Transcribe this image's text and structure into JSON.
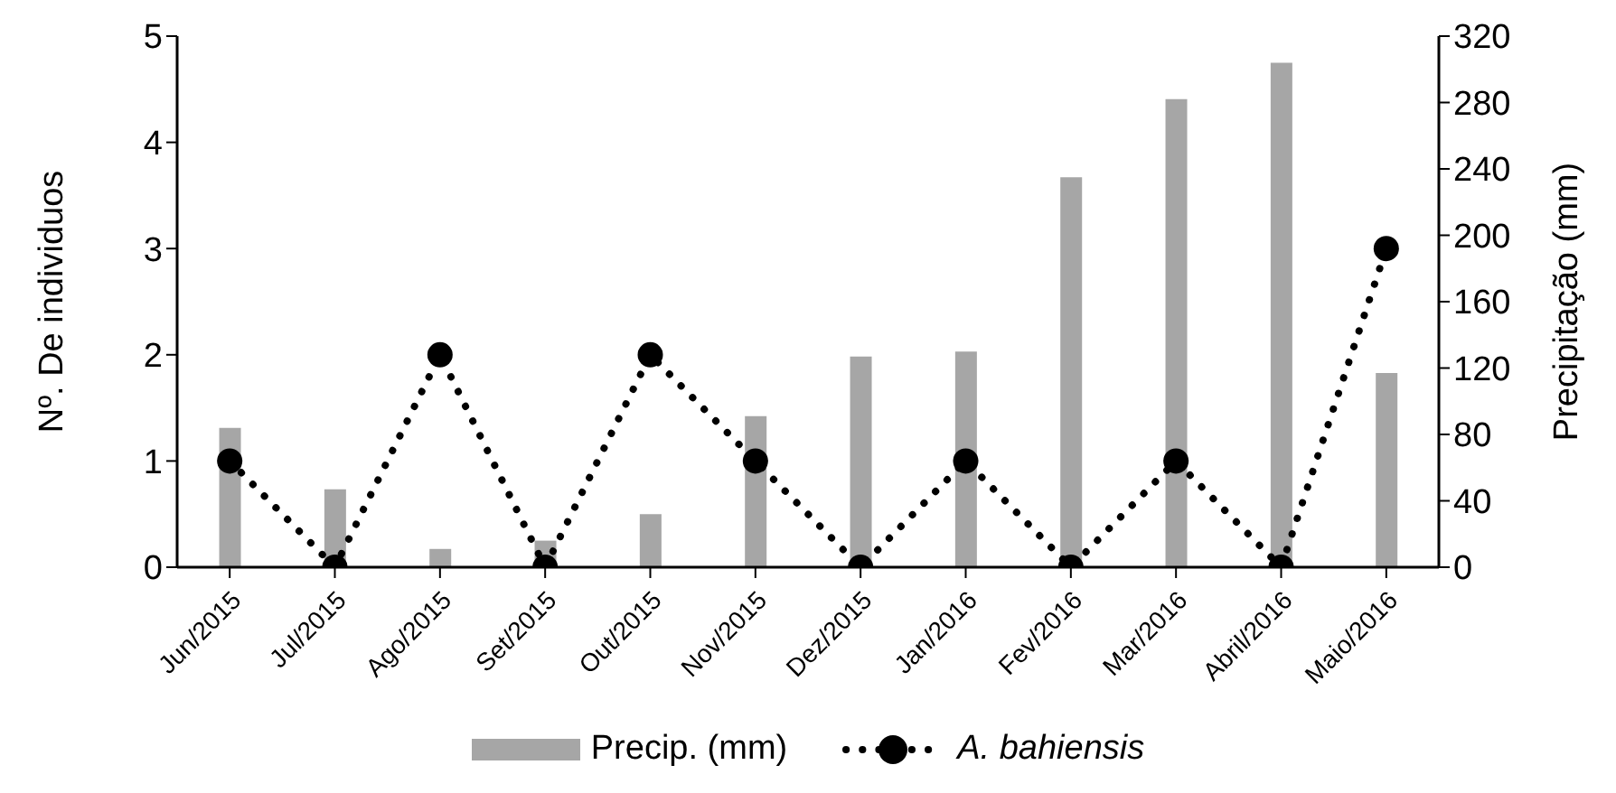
{
  "chart_data": {
    "type": "bar",
    "ylabel": "Nº. De individuos",
    "y2label": "Precipitação (mm)",
    "categories": [
      "Jun/2015",
      "Jul/2015",
      "Ago/2015",
      "Set/2015",
      "Out/2015",
      "Nov/2015",
      "Dez/2015",
      "Jan/2016",
      "Fev/2016",
      "Mar/2016",
      "Abril/2016",
      "Maio/2016"
    ],
    "series": [
      {
        "name": "Precip. (mm)",
        "axis": "y2",
        "color": "#a6a6a6",
        "values": [
          84,
          47,
          11,
          16,
          32,
          91,
          127,
          130,
          235,
          282,
          304,
          117
        ]
      },
      {
        "name": "A. bahiensis",
        "type": "line",
        "color": "#000000",
        "marker": "circle",
        "line_style": "dotted",
        "values": [
          1,
          0,
          2,
          0,
          2,
          1,
          0,
          1,
          0,
          1,
          0,
          3
        ]
      }
    ],
    "ylim": [
      0,
      5
    ],
    "yticks": [
      0,
      1,
      2,
      3,
      4,
      5
    ],
    "y2lim": [
      0,
      320
    ],
    "y2ticks": [
      0,
      40,
      80,
      120,
      160,
      200,
      240,
      280,
      320
    ],
    "grid": false,
    "legend": "bottom"
  }
}
